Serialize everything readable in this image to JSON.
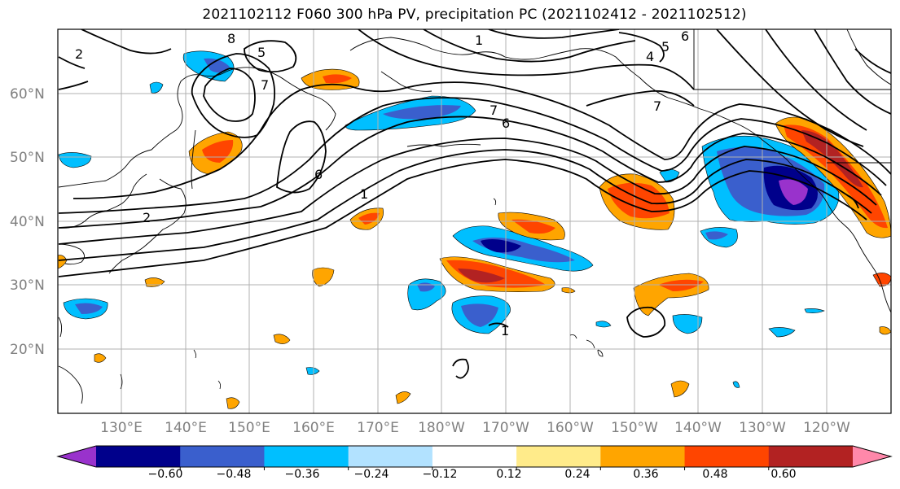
{
  "title": "2021102112 F060 300 hPa PV, precipitation PC (2021102412 - 2021102512)",
  "lat_labels": [
    "60°N",
    "50°N",
    "40°N",
    "30°N",
    "20°N"
  ],
  "lon_labels": [
    "130°E",
    "140°E",
    "150°E",
    "160°E",
    "170°E",
    "180°W",
    "170°W",
    "160°W",
    "150°W",
    "140°W",
    "130°W",
    "120°W"
  ],
  "colorbar": {
    "colors": [
      "#9932cc",
      "#00008b",
      "#3a5fcd",
      "#00bfff",
      "#b2e2ff",
      "#ffffff",
      "#ffeb8a",
      "#ffa500",
      "#ff4500",
      "#b22222",
      "#ff88aa"
    ],
    "tick_labels": [
      "−0.60",
      "−0.48",
      "−0.36",
      "−0.24",
      "−0.12",
      "0.12",
      "0.24",
      "0.36",
      "0.48",
      "0.60"
    ]
  },
  "contour_labels": [
    "8",
    "5",
    "7",
    "1",
    "2",
    "6",
    "1",
    "7",
    "6",
    "5",
    "4",
    "7",
    "6",
    "2",
    "1"
  ]
}
